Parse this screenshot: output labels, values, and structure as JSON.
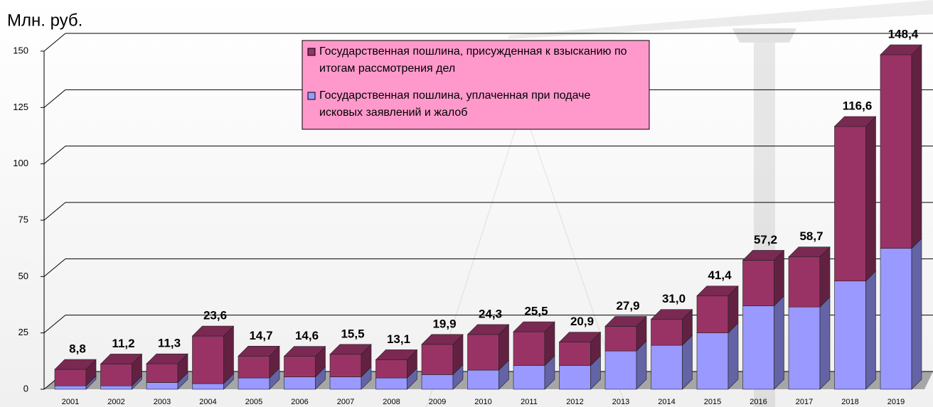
{
  "chart_data": {
    "type": "bar3d_stacked",
    "title": "Млн. руб.",
    "categories": [
      "2001",
      "2002",
      "2003",
      "2004",
      "2005",
      "2006",
      "2007",
      "2008",
      "2009",
      "2010",
      "2011",
      "2012",
      "2013",
      "2014",
      "2015",
      "2016",
      "2017",
      "2018",
      "2019"
    ],
    "series": [
      {
        "name": "Государственная пошлина, присужденная к взысканию по итогам рассмотрения дел",
        "color": "#993366",
        "values": [
          7.3,
          9.7,
          8.3,
          21.1,
          9.7,
          9.1,
          10.0,
          8.1,
          13.4,
          15.8,
          15.0,
          10.4,
          10.9,
          11.5,
          16.4,
          20.2,
          22.2,
          68.6,
          85.9
        ]
      },
      {
        "name": "Государственная пошлина, уплаченная при подаче исковых заявлений и жалоб",
        "color": "#9999ff",
        "values": [
          1.5,
          1.5,
          3.0,
          2.5,
          5.0,
          5.5,
          5.5,
          5.0,
          6.5,
          8.5,
          10.5,
          10.5,
          17.0,
          19.5,
          25.0,
          37.0,
          36.5,
          48.0,
          62.5
        ]
      }
    ],
    "totals": [
      8.8,
      11.2,
      11.3,
      23.6,
      14.7,
      14.6,
      15.5,
      13.1,
      19.9,
      24.3,
      25.5,
      20.9,
      27.9,
      31.0,
      41.4,
      57.2,
      58.7,
      116.6,
      148.4
    ],
    "total_labels": [
      "8,8",
      "11,2",
      "11,3",
      "23,6",
      "14,7",
      "14,6",
      "15,5",
      "13,1",
      "19,9",
      "24,3",
      "25,5",
      "20,9",
      "27,9",
      "31,0",
      "41,4",
      "57,2",
      "58,7",
      "116,6",
      "148,4"
    ],
    "ylim": [
      0,
      150
    ],
    "yticks": [
      0,
      25,
      50,
      75,
      100,
      125,
      150
    ],
    "grid": true
  }
}
